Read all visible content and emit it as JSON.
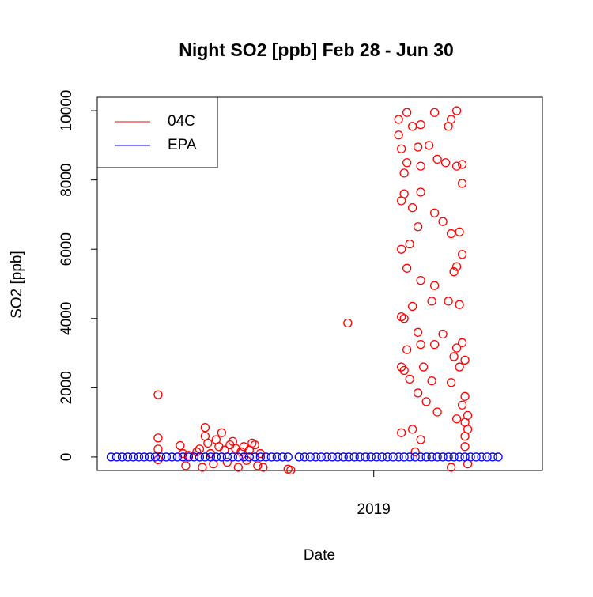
{
  "chart_data": {
    "type": "scatter",
    "title": "Night SO2 [ppb] Feb 28 - Jun 30",
    "x_label": "Date",
    "y_label": "SO2 [ppb]",
    "xlim": [
      2018.0,
      2019.61
    ],
    "xticks": [
      2019
    ],
    "ylim": [
      -390,
      10390
    ],
    "yticks": [
      0,
      2000,
      4000,
      6000,
      8000,
      10000
    ],
    "grid": false,
    "legend_position": "top-left",
    "series": [
      {
        "name": "04C",
        "color": "#ff0000",
        "x": [
          2018.22,
          2018.22,
          2018.22,
          2018.22,
          2018.3,
          2018.31,
          2018.32,
          2018.33,
          2018.36,
          2018.37,
          2018.38,
          2018.39,
          2018.39,
          2018.4,
          2018.41,
          2018.42,
          2018.43,
          2018.44,
          2018.45,
          2018.46,
          2018.47,
          2018.48,
          2018.49,
          2018.5,
          2018.51,
          2018.52,
          2018.53,
          2018.54,
          2018.55,
          2018.56,
          2018.57,
          2018.58,
          2018.59,
          2018.6,
          2018.69,
          2018.7,
          2018.906,
          2019.09,
          2019.09,
          2019.1,
          2019.1,
          2019.1,
          2019.1,
          2019.1,
          2019.1,
          2019.11,
          2019.11,
          2019.11,
          2019.11,
          2019.12,
          2019.12,
          2019.12,
          2019.12,
          2019.13,
          2019.13,
          2019.14,
          2019.14,
          2019.14,
          2019.14,
          2019.15,
          2019.16,
          2019.16,
          2019.16,
          2019.16,
          2019.17,
          2019.17,
          2019.17,
          2019.17,
          2019.17,
          2019.17,
          2019.18,
          2019.19,
          2019.2,
          2019.21,
          2019.21,
          2019.22,
          2019.22,
          2019.22,
          2019.22,
          2019.23,
          2019.23,
          2019.25,
          2019.25,
          2019.26,
          2019.27,
          2019.27,
          2019.28,
          2019.28,
          2019.28,
          2019.29,
          2019.29,
          2019.3,
          2019.3,
          2019.3,
          2019.3,
          2019.3,
          2019.31,
          2019.31,
          2019.31,
          2019.32,
          2019.32,
          2019.32,
          2019.32,
          2019.32,
          2019.33,
          2019.33,
          2019.33,
          2019.33,
          2019.33,
          2019.34,
          2019.34,
          2019.34,
          2019.28
        ],
        "values": [
          1800,
          550,
          230,
          -80,
          330,
          100,
          -250,
          50,
          150,
          230,
          -300,
          600,
          850,
          400,
          100,
          -200,
          500,
          300,
          700,
          200,
          -150,
          350,
          450,
          250,
          -300,
          150,
          300,
          -100,
          200,
          400,
          350,
          -250,
          100,
          -300,
          -350,
          -380,
          3870,
          9750,
          9300,
          8900,
          7400,
          6000,
          4050,
          2600,
          700,
          8200,
          7600,
          4000,
          2500,
          9950,
          8500,
          5450,
          3100,
          6150,
          2250,
          9550,
          7200,
          4350,
          800,
          150,
          8950,
          6650,
          3600,
          1850,
          9600,
          8400,
          7650,
          5100,
          3250,
          500,
          2600,
          1600,
          9000,
          4500,
          2200,
          9950,
          7050,
          4950,
          3250,
          8600,
          1300,
          6800,
          3550,
          8500,
          9550,
          4500,
          9750,
          6450,
          2150,
          5350,
          2900,
          10000,
          8400,
          5500,
          3150,
          1100,
          6500,
          4400,
          2600,
          8450,
          7900,
          5850,
          3300,
          1500,
          2800,
          1750,
          1000,
          600,
          300,
          1200,
          800,
          -200,
          -300
        ]
      },
      {
        "name": "EPA",
        "color": "#0000ff",
        "x": [
          2018.05,
          2018.07,
          2018.09,
          2018.11,
          2018.13,
          2018.15,
          2018.17,
          2018.19,
          2018.21,
          2018.23,
          2018.25,
          2018.27,
          2018.29,
          2018.31,
          2018.33,
          2018.35,
          2018.37,
          2018.39,
          2018.41,
          2018.43,
          2018.45,
          2018.47,
          2018.49,
          2018.51,
          2018.53,
          2018.55,
          2018.57,
          2018.59,
          2018.61,
          2018.63,
          2018.65,
          2018.67,
          2018.69,
          2018.73,
          2018.75,
          2018.77,
          2018.79,
          2018.81,
          2018.83,
          2018.85,
          2018.87,
          2018.89,
          2018.91,
          2018.93,
          2018.95,
          2018.97,
          2018.99,
          2019.01,
          2019.03,
          2019.05,
          2019.07,
          2019.09,
          2019.11,
          2019.13,
          2019.15,
          2019.17,
          2019.19,
          2019.21,
          2019.23,
          2019.25,
          2019.27,
          2019.29,
          2019.31,
          2019.33,
          2019.35,
          2019.37,
          2019.39,
          2019.41,
          2019.43,
          2019.45
        ],
        "values": [
          0,
          0,
          0,
          0,
          0,
          0,
          0,
          0,
          0,
          0,
          0,
          0,
          0,
          0,
          0,
          0,
          0,
          0,
          0,
          0,
          0,
          0,
          0,
          0,
          0,
          0,
          0,
          0,
          0,
          0,
          0,
          0,
          0,
          0,
          0,
          0,
          0,
          0,
          0,
          0,
          0,
          0,
          0,
          0,
          0,
          0,
          0,
          0,
          0,
          0,
          0,
          0,
          0,
          0,
          0,
          0,
          0,
          0,
          0,
          0,
          0,
          0,
          0,
          0,
          0,
          0,
          0,
          0,
          0,
          0
        ]
      }
    ]
  }
}
